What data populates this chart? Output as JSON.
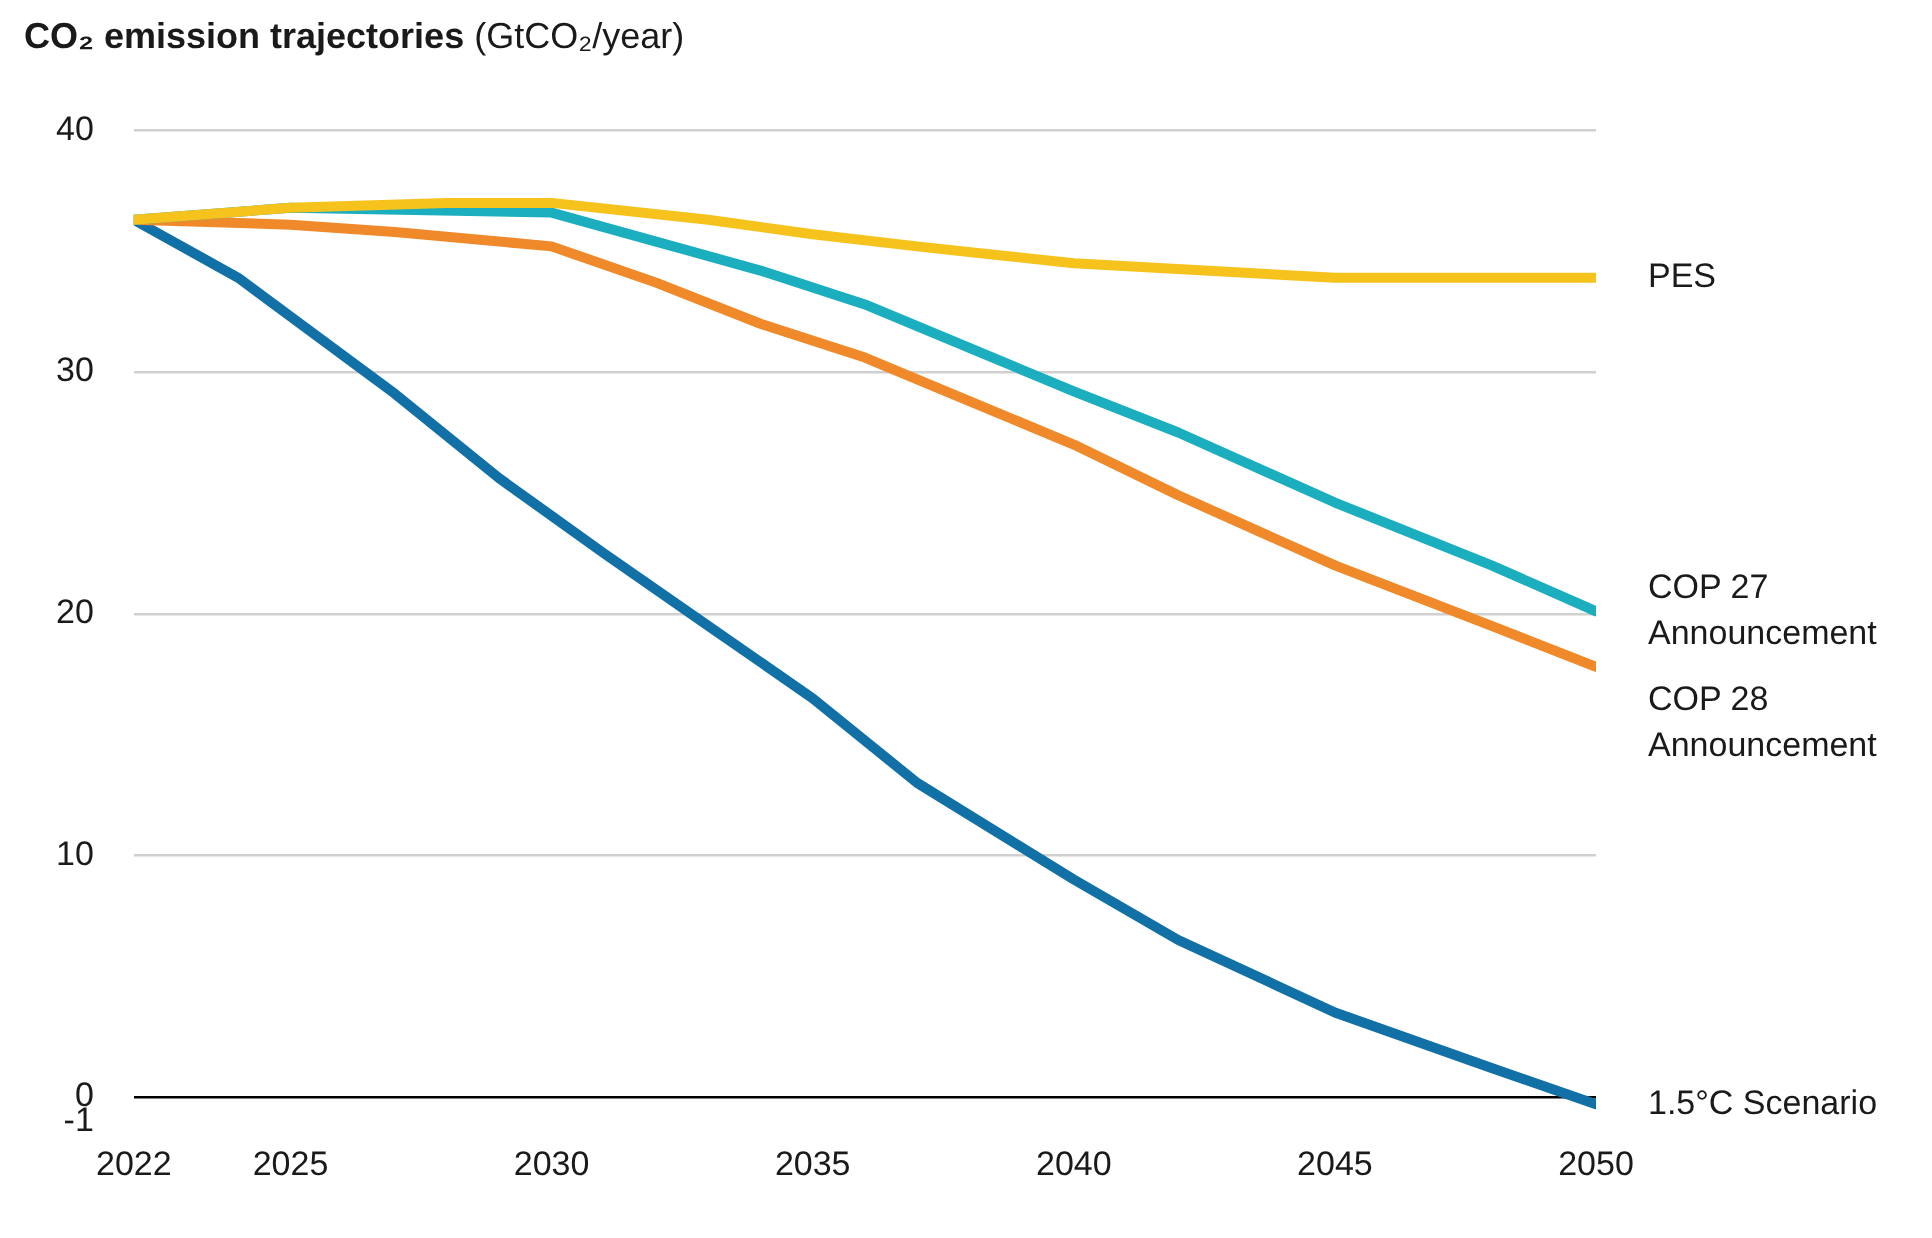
{
  "chart_data": {
    "type": "line",
    "title": "CO₂ emission trajectories",
    "subtitle": "(GtCO₂/year)",
    "xlim": [
      2022,
      2050
    ],
    "xticks": [
      2022,
      2025,
      2030,
      2035,
      2040,
      2045,
      2050
    ],
    "ylim": [
      -1,
      40
    ],
    "yticks": [
      -1,
      0,
      10,
      20,
      30,
      40
    ],
    "grid": "y",
    "legend": false,
    "marker": "none",
    "line_style": "solid",
    "series": [
      {
        "name": "PES",
        "color": "#f6c31c",
        "x": [
          2022,
          2025,
          2028,
          2030,
          2033,
          2035,
          2037,
          2040,
          2045,
          2050
        ],
        "values": [
          36.3,
          36.8,
          37.0,
          37.0,
          36.3,
          35.7,
          35.2,
          34.5,
          33.9,
          33.9
        ]
      },
      {
        "name": "COP 27 Announcement",
        "color": "#1aaebf",
        "x": [
          2022,
          2025,
          2030,
          2032,
          2034,
          2036,
          2038,
          2040,
          2042,
          2045,
          2048,
          2050
        ],
        "values": [
          36.3,
          36.8,
          36.6,
          35.4,
          34.2,
          32.8,
          31.0,
          29.2,
          27.5,
          24.6,
          22.0,
          20.1
        ]
      },
      {
        "name": "COP 28 Announcement",
        "color": "#f0892a",
        "x": [
          2022,
          2025,
          2027,
          2030,
          2032,
          2034,
          2036,
          2038,
          2040,
          2042,
          2045,
          2048,
          2050
        ],
        "values": [
          36.3,
          36.1,
          35.8,
          35.2,
          33.7,
          32.0,
          30.6,
          28.8,
          27.0,
          24.9,
          22.0,
          19.5,
          17.8
        ]
      },
      {
        "name": "1.5°C Scenario",
        "color": "#1170a6",
        "x": [
          2022,
          2024,
          2025,
          2027,
          2029,
          2031,
          2033,
          2035,
          2037,
          2040,
          2042,
          2045,
          2048,
          2050
        ],
        "values": [
          36.3,
          33.9,
          32.3,
          29.1,
          25.6,
          22.5,
          19.5,
          16.5,
          13.0,
          9.0,
          6.5,
          3.5,
          1.2,
          -0.3
        ]
      }
    ]
  }
}
